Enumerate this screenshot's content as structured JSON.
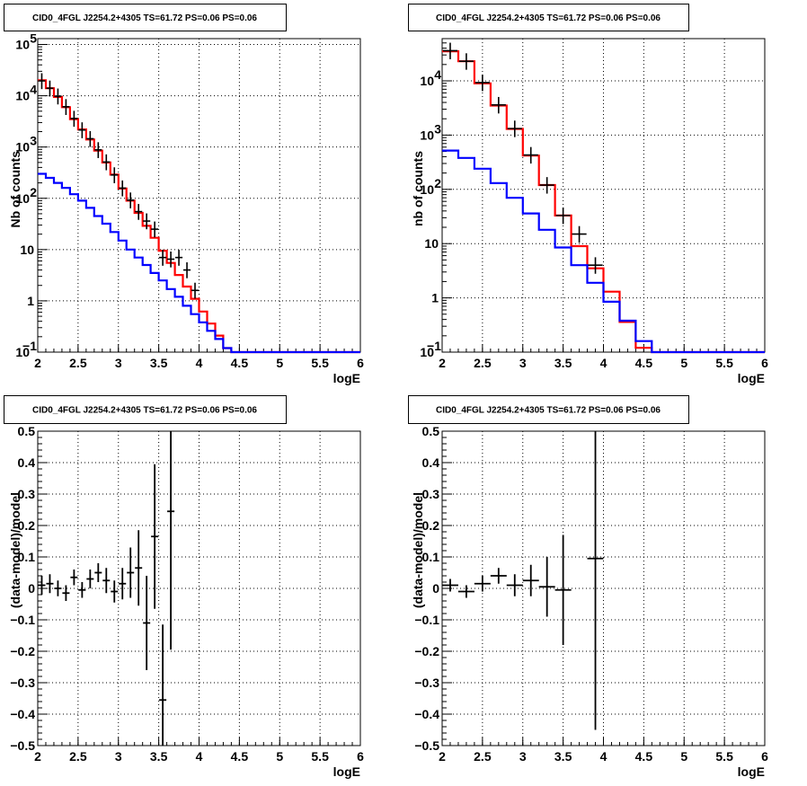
{
  "chart_data": [
    {
      "type": "line",
      "title": "CID0_4FGL J2254.2+4305 TS=61.72 PS=0.06 PS=0.06",
      "xlabel": "logE",
      "ylabel": "Nb of counts",
      "xlim": [
        2,
        6
      ],
      "ylim": [
        0.1,
        130000
      ],
      "yscale": "log",
      "grid": true,
      "x_ticks": [
        "2",
        "2.5",
        "3",
        "3.5",
        "4",
        "4.5",
        "5",
        "5.5",
        "6"
      ],
      "y_ticks": [
        {
          "value": 0.1,
          "label": "10",
          "sup": "−1"
        },
        {
          "value": 1,
          "label": "1",
          "sup": ""
        },
        {
          "value": 10,
          "label": "10",
          "sup": ""
        },
        {
          "value": 100,
          "label": "10",
          "sup": "2"
        },
        {
          "value": 1000,
          "label": "10",
          "sup": "3"
        },
        {
          "value": 10000,
          "label": "10",
          "sup": "4"
        },
        {
          "value": 100000,
          "label": "10",
          "sup": "5"
        }
      ],
      "bin_edges": [
        2.0,
        2.1,
        2.2,
        2.3,
        2.4,
        2.5,
        2.6,
        2.7,
        2.8,
        2.9,
        3.0,
        3.1,
        3.2,
        3.3,
        3.4,
        3.5,
        3.6,
        3.7,
        3.8,
        3.9,
        4.0,
        4.1,
        4.2,
        4.3,
        4.4,
        4.5,
        4.6,
        4.7,
        4.8,
        4.9,
        5.0,
        5.1,
        5.2,
        5.3,
        5.4,
        5.5,
        5.6,
        5.7,
        5.8,
        5.9,
        6.0
      ],
      "series": [
        {
          "name": "",
          "color": "#ff0000",
          "style": "step",
          "values": [
            20000,
            14000,
            9500,
            6000,
            3500,
            2200,
            1400,
            850,
            500,
            290,
            155,
            90,
            52,
            29,
            17,
            9.5,
            5.5,
            3.2,
            1.9,
            1.1,
            0.62,
            0.36,
            0.21,
            0.12,
            0.07,
            0.1,
            0.1,
            0.1,
            0.1,
            0.1,
            0.1,
            0.1,
            0.1,
            0.1,
            0.1,
            0.1,
            0.1,
            0.1,
            0.1,
            0.1
          ]
        },
        {
          "name": "",
          "color": "#0000ff",
          "style": "step",
          "values": [
            300,
            250,
            200,
            160,
            120,
            90,
            65,
            45,
            32,
            22,
            15,
            10,
            7,
            5,
            3.5,
            2.5,
            1.7,
            1.2,
            0.8,
            0.55,
            0.38,
            0.26,
            0.18,
            0.12,
            0.08,
            0.1,
            0.1,
            0.1,
            0.1,
            0.1,
            0.1,
            0.1,
            0.1,
            0.1,
            0.1,
            0.1,
            0.1,
            0.1,
            0.1,
            0.1
          ]
        },
        {
          "name": "",
          "color": "#000000",
          "style": "points",
          "points": [
            [
              2.05,
              19500
            ],
            [
              2.15,
              14000
            ],
            [
              2.25,
              9800
            ],
            [
              2.35,
              6100
            ],
            [
              2.45,
              3600
            ],
            [
              2.55,
              2150
            ],
            [
              2.65,
              1450
            ],
            [
              2.75,
              880
            ],
            [
              2.85,
              510
            ],
            [
              2.95,
              285
            ],
            [
              3.05,
              158
            ],
            [
              3.15,
              92
            ],
            [
              3.25,
              55
            ],
            [
              3.35,
              36
            ],
            [
              3.45,
              25
            ],
            [
              3.55,
              7
            ],
            [
              3.65,
              6.5
            ],
            [
              3.75,
              7
            ],
            [
              3.85,
              4
            ],
            [
              3.95,
              1.6
            ]
          ]
        }
      ]
    },
    {
      "type": "line",
      "title": "CID0_4FGL J2254.2+4305 TS=61.72 PS=0.06 PS=0.06",
      "xlabel": "logE",
      "ylabel": "nb of counts",
      "xlim": [
        2,
        6
      ],
      "ylim": [
        0.1,
        60000
      ],
      "yscale": "log",
      "grid": true,
      "x_ticks": [
        "2",
        "2.5",
        "3",
        "3.5",
        "4",
        "4.5",
        "5",
        "5.5",
        "6"
      ],
      "y_ticks": [
        {
          "value": 0.1,
          "label": "10",
          "sup": "−1"
        },
        {
          "value": 1,
          "label": "1",
          "sup": ""
        },
        {
          "value": 10,
          "label": "10",
          "sup": ""
        },
        {
          "value": 100,
          "label": "10",
          "sup": "2"
        },
        {
          "value": 1000,
          "label": "10",
          "sup": "3"
        },
        {
          "value": 10000,
          "label": "10",
          "sup": "4"
        }
      ],
      "bin_edges": [
        2.0,
        2.2,
        2.4,
        2.6,
        2.8,
        3.0,
        3.2,
        3.4,
        3.6,
        3.8,
        4.0,
        4.2,
        4.4,
        4.6,
        4.8,
        5.0,
        5.2,
        5.4,
        5.6,
        5.8,
        6.0
      ],
      "series": [
        {
          "name": "",
          "color": "#ff0000",
          "style": "step",
          "values": [
            35000,
            23000,
            9000,
            3500,
            1300,
            420,
            120,
            33,
            9,
            3.5,
            1.3,
            0.36,
            0.12,
            0.1,
            0.1,
            0.1,
            0.1,
            0.1,
            0.1,
            0.1
          ]
        },
        {
          "name": "",
          "color": "#0000ff",
          "style": "step",
          "values": [
            520,
            380,
            240,
            130,
            70,
            36,
            18,
            8.5,
            4,
            1.9,
            0.85,
            0.38,
            0.16,
            0.1,
            0.1,
            0.1,
            0.1,
            0.1,
            0.1,
            0.1
          ]
        },
        {
          "name": "",
          "color": "#000000",
          "style": "points",
          "points": [
            [
              2.1,
              36000
            ],
            [
              2.3,
              23000
            ],
            [
              2.5,
              9300
            ],
            [
              2.7,
              3600
            ],
            [
              2.9,
              1320
            ],
            [
              3.1,
              430
            ],
            [
              3.3,
              120
            ],
            [
              3.5,
              33
            ],
            [
              3.7,
              15
            ],
            [
              3.9,
              4
            ]
          ]
        }
      ]
    },
    {
      "type": "scatter",
      "title": "CID0_4FGL J2254.2+4305 TS=61.72 PS=0.06 PS=0.06",
      "xlabel": "logE",
      "ylabel": "(data-model)/model",
      "xlim": [
        2,
        6
      ],
      "ylim": [
        -0.5,
        0.5
      ],
      "grid": true,
      "x_ticks": [
        "2",
        "2.5",
        "3",
        "3.5",
        "4",
        "4.5",
        "5",
        "5.5",
        "6"
      ],
      "y_ticks": [
        "−0.5",
        "−0.4",
        "−0.3",
        "−0.2",
        "−0.1",
        "0",
        "0.1",
        "0.2",
        "0.3",
        "0.4",
        "0.5"
      ],
      "points": [
        {
          "x": 2.05,
          "y": 0.01,
          "err": 0.03
        },
        {
          "x": 2.15,
          "y": 0.015,
          "err": 0.03
        },
        {
          "x": 2.25,
          "y": 0.0,
          "err": 0.025
        },
        {
          "x": 2.35,
          "y": -0.015,
          "err": 0.025
        },
        {
          "x": 2.45,
          "y": 0.035,
          "err": 0.025
        },
        {
          "x": 2.55,
          "y": -0.005,
          "err": 0.025
        },
        {
          "x": 2.65,
          "y": 0.03,
          "err": 0.03
        },
        {
          "x": 2.75,
          "y": 0.05,
          "err": 0.03
        },
        {
          "x": 2.85,
          "y": 0.025,
          "err": 0.04
        },
        {
          "x": 2.95,
          "y": -0.01,
          "err": 0.035
        },
        {
          "x": 3.05,
          "y": 0.015,
          "err": 0.05
        },
        {
          "x": 3.15,
          "y": 0.05,
          "err": 0.08
        },
        {
          "x": 3.25,
          "y": 0.065,
          "err": 0.12
        },
        {
          "x": 3.35,
          "y": -0.11,
          "err": 0.15
        },
        {
          "x": 3.45,
          "y": 0.165,
          "err": 0.23
        },
        {
          "x": 3.55,
          "y": -0.355,
          "err": 0.24
        },
        {
          "x": 3.65,
          "y": 0.245,
          "err": 0.44
        }
      ]
    },
    {
      "type": "scatter",
      "title": "CID0_4FGL J2254.2+4305 TS=61.72 PS=0.06 PS=0.06",
      "xlabel": "logE",
      "ylabel": "(data-model)/model",
      "xlim": [
        2,
        6
      ],
      "ylim": [
        -0.5,
        0.5
      ],
      "grid": true,
      "x_ticks": [
        "2",
        "2.5",
        "3",
        "3.5",
        "4",
        "4.5",
        "5",
        "5.5",
        "6"
      ],
      "y_ticks": [
        "−0.5",
        "−0.4",
        "−0.3",
        "−0.2",
        "−0.1",
        "0",
        "0.1",
        "0.2",
        "0.3",
        "0.4",
        "0.5"
      ],
      "points": [
        {
          "x": 2.1,
          "y": 0.01,
          "err": 0.02
        },
        {
          "x": 2.3,
          "y": -0.01,
          "err": 0.02
        },
        {
          "x": 2.5,
          "y": 0.015,
          "err": 0.025
        },
        {
          "x": 2.7,
          "y": 0.04,
          "err": 0.025
        },
        {
          "x": 2.9,
          "y": 0.01,
          "err": 0.035
        },
        {
          "x": 3.1,
          "y": 0.025,
          "err": 0.05
        },
        {
          "x": 3.3,
          "y": 0.005,
          "err": 0.095
        },
        {
          "x": 3.5,
          "y": -0.005,
          "err": 0.175
        },
        {
          "x": 3.9,
          "y": 0.095,
          "err": 0.545
        }
      ]
    }
  ]
}
